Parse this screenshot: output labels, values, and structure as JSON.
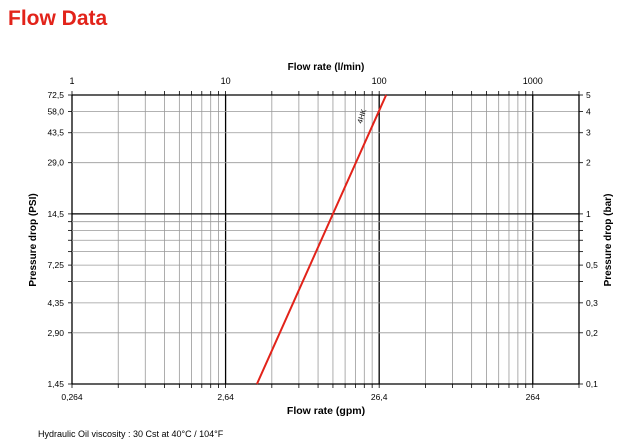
{
  "page_title": "Flow Data",
  "chart_data": {
    "type": "line",
    "title": "Flow Data",
    "x_top_label": "Flow rate (l/min)",
    "x_bottom_label": "Flow rate (gpm)",
    "y_left_label": "Pressure drop (PSI)",
    "y_right_label": "Pressure drop (bar)",
    "x_scale": "log",
    "y_scale": "log",
    "xlim_lmin": [
      1,
      2000
    ],
    "ylim_bar": [
      0.1,
      5
    ],
    "x_top_ticks": [
      "1",
      "10",
      "100",
      "1000"
    ],
    "x_top_tick_values": [
      1,
      10,
      100,
      1000
    ],
    "x_bottom_ticks": [
      "0,264",
      "2,64",
      "26,4",
      "264"
    ],
    "y_right_ticks": [
      "5",
      "4",
      "3",
      "2",
      "1",
      "0,5",
      "0,3",
      "0,2",
      "0,1"
    ],
    "y_right_tick_values": [
      5,
      4,
      3,
      2,
      1,
      0.5,
      0.3,
      0.2,
      0.1
    ],
    "y_left_ticks": [
      "72,5",
      "58,0",
      "43,5",
      "29,0",
      "14,5",
      "7,25",
      "4,35",
      "2,90",
      "1,45"
    ],
    "grid": true,
    "series": [
      {
        "name": "4HK",
        "color": "#e2231a",
        "x": [
          16,
          50,
          111
        ],
        "y": [
          0.1,
          1,
          5
        ]
      }
    ],
    "note": "Hydraulic Oil viscosity : 30 Cst at 40°C / 104°F"
  }
}
